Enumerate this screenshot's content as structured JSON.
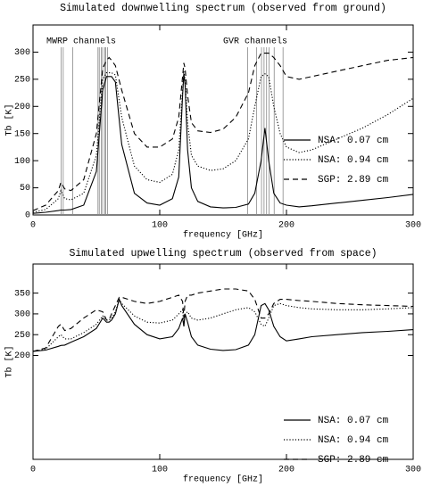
{
  "chart_data": [
    {
      "type": "line",
      "title": "Simulated downwelling spectrum (observed from ground)",
      "xlabel": "frequency [GHz]",
      "ylabel": "Tb [K]",
      "annotations": [
        "MWRP channels",
        "GVR channels"
      ],
      "channels": [
        22.235,
        23.835,
        31.4,
        51.26,
        52.28,
        53.85,
        54.94,
        56.66,
        57.29,
        58.8,
        169.31,
        176.31,
        180.31,
        182.31,
        184.31,
        186.31,
        190.31,
        197.31
      ],
      "x": [
        0,
        10,
        20,
        22,
        25,
        30,
        40,
        50,
        55,
        58,
        60,
        62,
        65,
        70,
        80,
        90,
        100,
        110,
        115,
        118,
        119,
        120,
        122,
        125,
        130,
        140,
        150,
        160,
        170,
        175,
        180,
        183,
        186,
        190,
        195,
        200,
        210,
        220,
        240,
        260,
        280,
        300
      ],
      "series": [
        {
          "name": "NSA: 0.07 cm",
          "color": "#000000",
          "dash": "solid",
          "values": [
            3,
            5,
            8,
            9,
            9,
            10,
            18,
            80,
            230,
            255,
            255,
            255,
            245,
            130,
            40,
            22,
            18,
            30,
            70,
            220,
            260,
            240,
            120,
            50,
            25,
            15,
            13,
            14,
            20,
            40,
            100,
            160,
            100,
            40,
            22,
            18,
            15,
            17,
            22,
            27,
            32,
            38
          ]
        },
        {
          "name": "NSA: 0.94 cm",
          "color": "#000000",
          "dash": "dotted",
          "values": [
            5,
            10,
            30,
            45,
            30,
            28,
            40,
            110,
            250,
            262,
            262,
            262,
            258,
            180,
            90,
            65,
            60,
            75,
            120,
            230,
            265,
            250,
            170,
            110,
            90,
            82,
            85,
            100,
            140,
            200,
            255,
            260,
            255,
            200,
            150,
            125,
            115,
            120,
            140,
            160,
            185,
            215
          ]
        },
        {
          "name": "SGP: 2.89 cm",
          "color": "#000000",
          "dash": "dashed",
          "values": [
            8,
            18,
            45,
            60,
            48,
            45,
            65,
            150,
            270,
            285,
            290,
            285,
            275,
            230,
            150,
            125,
            125,
            140,
            180,
            255,
            280,
            270,
            220,
            170,
            155,
            152,
            158,
            180,
            225,
            275,
            298,
            298,
            298,
            290,
            275,
            255,
            250,
            255,
            265,
            275,
            285,
            290
          ]
        }
      ],
      "xlim": [
        0,
        300
      ],
      "xticks": [
        0,
        100,
        200,
        300
      ],
      "ylim": [
        0,
        350
      ],
      "yticks": [
        0,
        50,
        100,
        150,
        200,
        250,
        300
      ],
      "legend": "lower right"
    },
    {
      "type": "line",
      "title": "Simulated upwelling spectrum (observed from space)",
      "xlabel": "frequency [GHz]",
      "ylabel": "Tb [K]",
      "x": [
        0,
        10,
        20,
        22,
        25,
        30,
        40,
        50,
        55,
        58,
        60,
        62,
        65,
        68,
        70,
        80,
        90,
        100,
        110,
        115,
        118,
        119,
        120,
        122,
        125,
        130,
        140,
        150,
        160,
        170,
        175,
        180,
        183,
        186,
        190,
        195,
        200,
        210,
        220,
        240,
        260,
        280,
        300
      ],
      "series": [
        {
          "name": "NSA: 0.07 cm",
          "color": "#000000",
          "dash": "solid",
          "values": [
            210,
            213,
            222,
            224,
            225,
            232,
            245,
            265,
            290,
            280,
            280,
            285,
            300,
            335,
            320,
            275,
            250,
            240,
            245,
            265,
            290,
            270,
            300,
            280,
            245,
            225,
            215,
            212,
            214,
            225,
            250,
            320,
            325,
            310,
            270,
            245,
            235,
            240,
            245,
            250,
            255,
            258,
            262
          ]
        },
        {
          "name": "NSA: 0.94 cm",
          "color": "#000000",
          "dash": "dotted",
          "values": [
            210,
            215,
            245,
            250,
            240,
            240,
            255,
            275,
            295,
            285,
            285,
            290,
            305,
            335,
            325,
            295,
            280,
            278,
            285,
            300,
            310,
            270,
            300,
            305,
            290,
            285,
            290,
            300,
            310,
            315,
            305,
            275,
            270,
            290,
            320,
            325,
            320,
            315,
            312,
            310,
            310,
            312,
            315
          ]
        },
        {
          "name": "SGP: 2.89 cm",
          "color": "#000000",
          "dash": "dashed",
          "values": [
            210,
            218,
            270,
            275,
            260,
            265,
            290,
            310,
            305,
            285,
            285,
            300,
            320,
            340,
            340,
            330,
            325,
            330,
            340,
            345,
            330,
            290,
            330,
            345,
            345,
            350,
            355,
            360,
            360,
            355,
            335,
            290,
            290,
            300,
            325,
            335,
            335,
            332,
            330,
            325,
            322,
            320,
            318
          ]
        }
      ],
      "xlim": [
        0,
        300
      ],
      "xticks": [
        0,
        100,
        200,
        300
      ],
      "ylim": [
        -50,
        420
      ],
      "yticks": [
        200,
        250,
        300,
        350
      ],
      "legend": "lower right"
    }
  ]
}
